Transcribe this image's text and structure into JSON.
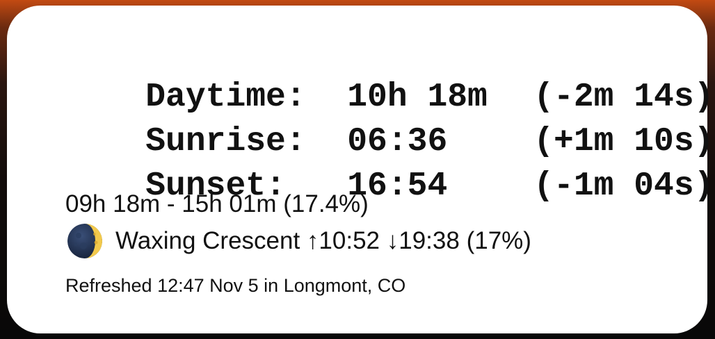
{
  "daylight": {
    "daytime": {
      "label": "Daytime:",
      "value": "10h 18m",
      "delta": "(-2m 14s)"
    },
    "sunrise": {
      "label": "Sunrise:",
      "value": "06:36",
      "delta": "(+1m 10s)"
    },
    "sunset": {
      "label": "Sunset:",
      "value": "16:54",
      "delta": "(-1m 04s)"
    }
  },
  "twilight": {
    "text": "09h 18m - 15h 01m (17.4%)"
  },
  "moon": {
    "icon": "waxing-crescent-moon-icon",
    "phase": "Waxing Crescent",
    "rise": "↑10:52",
    "set": "↓19:38",
    "illumination": "(17%)"
  },
  "footer": {
    "refreshed": "Refreshed 12:47 Nov 5 in Longmont, CO"
  },
  "colors": {
    "background_top": "#c24a12",
    "widget": "#ffffff",
    "text": "#111111",
    "moon_dark": "#1e2f4f",
    "moon_light": "#f2c94c"
  }
}
